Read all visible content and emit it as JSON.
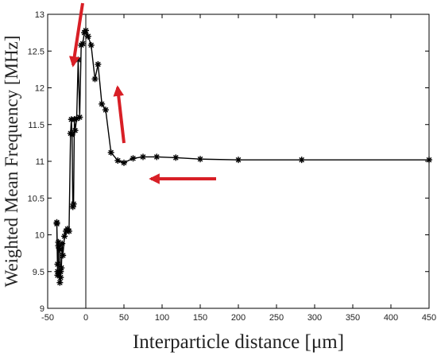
{
  "chart_data": {
    "type": "line",
    "xlabel": "Interparticle distance [μm]",
    "ylabel": "Weighted Mean Frequency [MHz]",
    "xlim": [
      -50,
      450
    ],
    "ylim": [
      9,
      13
    ],
    "xticks": [
      "-50",
      "0",
      "50",
      "100",
      "150",
      "200",
      "250",
      "300",
      "350",
      "400",
      "450"
    ],
    "yticks": [
      "9",
      "9.5",
      "10",
      "10.5",
      "11",
      "11.5",
      "12",
      "12.5",
      "13"
    ],
    "grid": false,
    "marker": "asterisk",
    "line_color": "#000000",
    "arrow_color": "#d81f26",
    "reference_line_x": 0,
    "series": [
      {
        "x": [
          450,
          283,
          200,
          150,
          118,
          93,
          75,
          62,
          50,
          42,
          33,
          26,
          21,
          16,
          12,
          7,
          3,
          0,
          -2,
          -4,
          -6,
          -8,
          -10,
          -12,
          -14,
          -15,
          -16,
          -17,
          -18,
          -19,
          -20,
          -22,
          -24,
          -26,
          -28,
          -30,
          -31,
          -32,
          -33,
          -34,
          -35,
          -36,
          -37,
          -37,
          -38,
          -38,
          -37,
          -36,
          -35,
          -34,
          -33
        ],
        "y": [
          11.02,
          11.02,
          11.02,
          11.03,
          11.05,
          11.06,
          11.06,
          11.04,
          10.98,
          11.01,
          11.12,
          11.7,
          11.78,
          12.32,
          12.12,
          12.58,
          12.7,
          12.78,
          12.75,
          12.6,
          12.58,
          11.6,
          12.38,
          11.58,
          11.42,
          11.57,
          10.42,
          10.38,
          11.36,
          11.57,
          11.38,
          10.05,
          10.08,
          10.05,
          9.98,
          9.72,
          9.88,
          9.55,
          9.42,
          9.35,
          9.48,
          9.9,
          9.5,
          9.45,
          10.15,
          10.17,
          9.6,
          9.85,
          9.82,
          9.8,
          9.5
        ]
      }
    ]
  }
}
